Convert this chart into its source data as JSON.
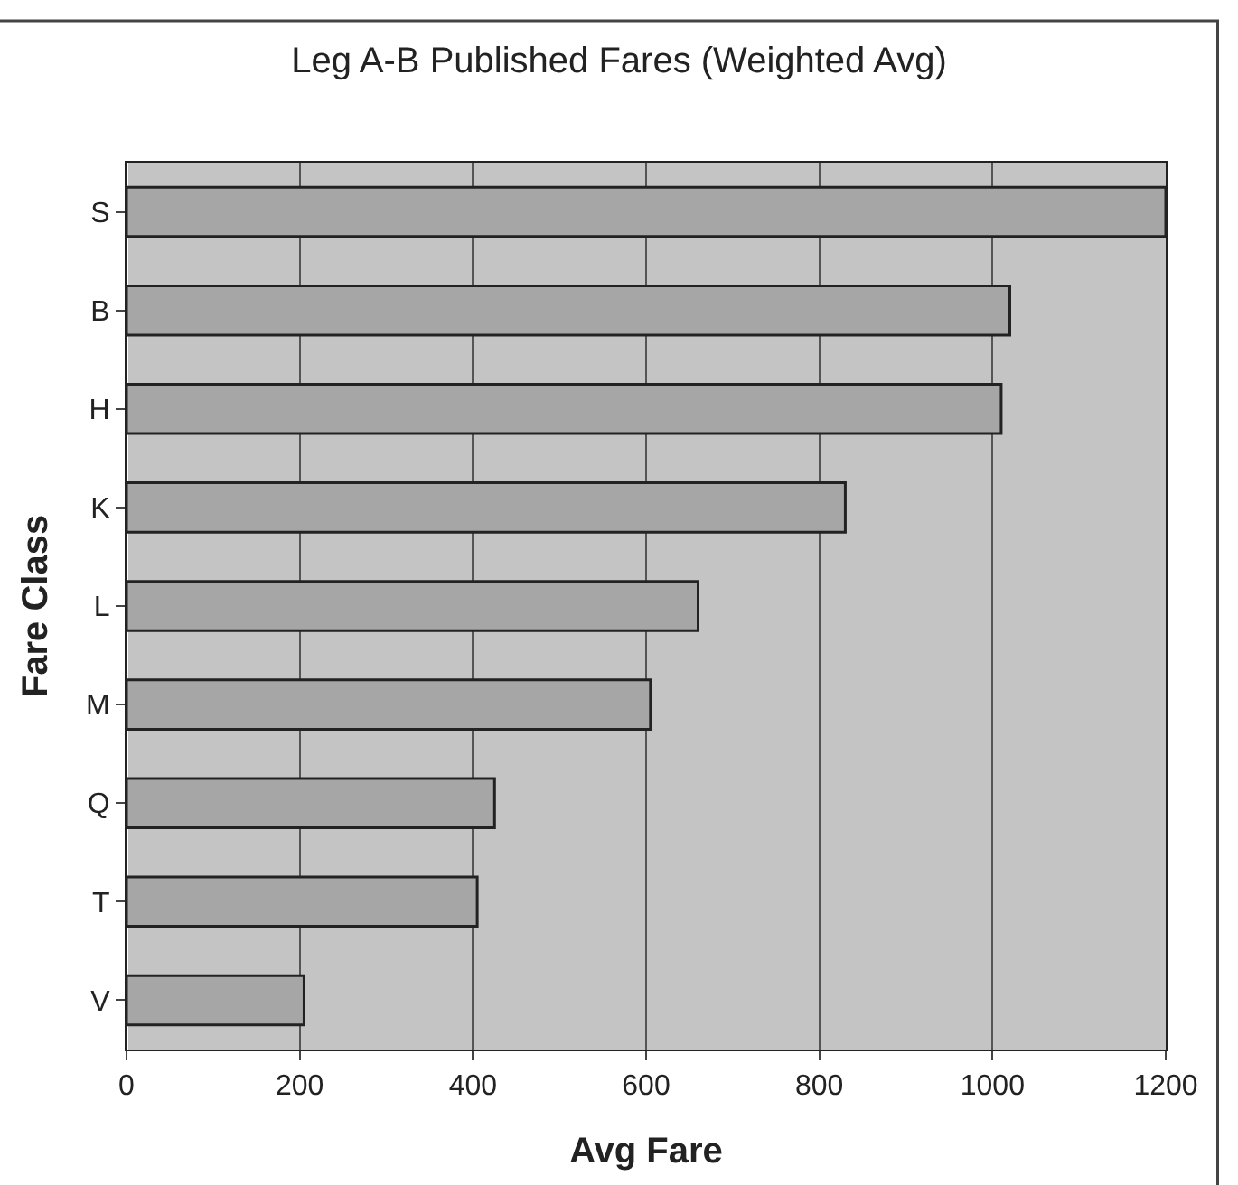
{
  "chart_data": {
    "type": "bar",
    "orientation": "horizontal",
    "title": "Leg A-B Published Fares (Weighted Avg)",
    "xlabel": "Avg Fare",
    "ylabel": "Fare Class",
    "categories": [
      "S",
      "B",
      "H",
      "K",
      "L",
      "M",
      "Q",
      "T",
      "V"
    ],
    "values": [
      1200,
      1020,
      1010,
      830,
      660,
      605,
      425,
      405,
      205
    ],
    "color": "#a6a6a6",
    "xlim": [
      0,
      1200
    ],
    "xticks": [
      0,
      200,
      400,
      600,
      800,
      1000,
      1200
    ],
    "grid": "x",
    "legend": false
  }
}
